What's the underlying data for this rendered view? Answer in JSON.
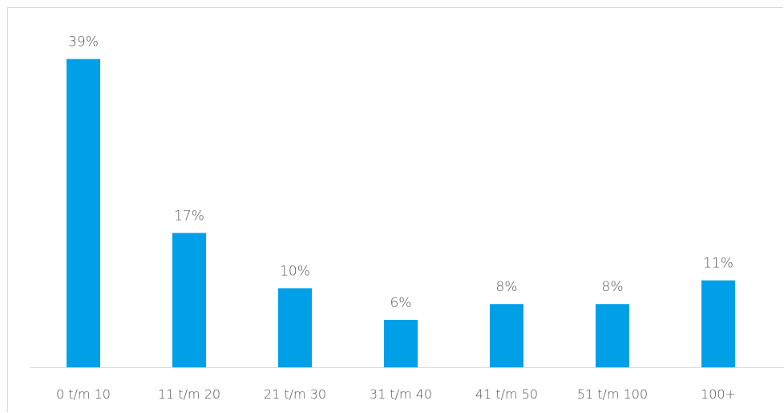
{
  "chart_data": {
    "type": "bar",
    "categories": [
      "0 t/m 10",
      "11 t/m 20",
      "21 t/m 30",
      "31 t/m 40",
      "41 t/m 50",
      "51 t/m 100",
      "100+"
    ],
    "values": [
      39,
      17,
      10,
      6,
      8,
      8,
      11
    ],
    "data_labels": [
      "39%",
      "17%",
      "10%",
      "6%",
      "8%",
      "8%",
      "11%"
    ],
    "unit": "%",
    "ylim": [
      0,
      41.5
    ],
    "grid": false,
    "legend": "none",
    "bar_color": "#00A0E9",
    "axis_color": "#d9d9d9",
    "text_color": "#595959"
  }
}
